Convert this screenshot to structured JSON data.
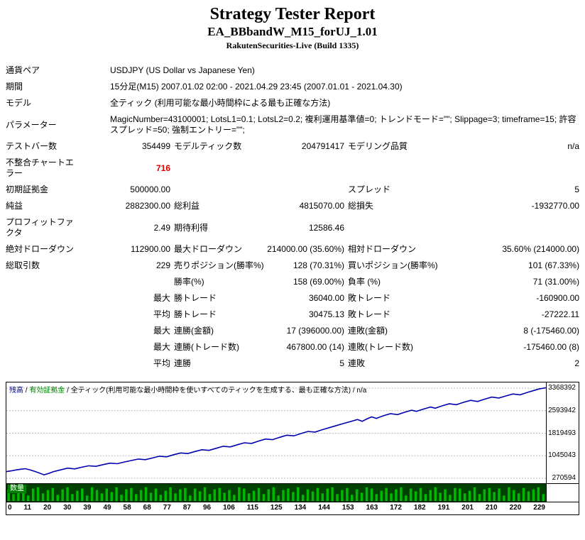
{
  "page": {
    "title": "Strategy Tester Report",
    "subtitle": "EA_BBbandW_M15_forUJ_1.01",
    "build": "RakutenSecurities-Live (Build 1335)"
  },
  "report": {
    "pair": {
      "label": "通貨ペア",
      "value": "USDJPY (US Dollar vs Japanese Yen)"
    },
    "period": {
      "label": "期間",
      "value": "15分足(M15) 2007.01.02 02:00 - 2021.04.29 23:45 (2007.01.01 - 2021.04.30)"
    },
    "model": {
      "label": "モデル",
      "value": "全ティック (利用可能な最小時間枠による最も正確な方法)"
    },
    "params": {
      "label": "パラメーター",
      "value": "MagicNumber=43100001; LotsL1=0.1; LotsL2=0.2; 複利運用基準値=0; トレンドモード=\"\"; Slippage=3; timeframe=15; 許容スプレッド=50; 強制エントリー=\"\";"
    },
    "bars": {
      "label": "テストバー数",
      "value": "354499",
      "label2": "モデルティック数",
      "value2": "204791417",
      "label3": "モデリング品質",
      "value3": "n/a"
    },
    "mismatch": {
      "label": "不整合チャートエラー",
      "value": "716"
    },
    "deposit": {
      "label": "初期証拠金",
      "value": "500000.00",
      "label3": "スプレッド",
      "value3": "5"
    },
    "net": {
      "label": "純益",
      "value": "2882300.00",
      "label2": "総利益",
      "value2": "4815070.00",
      "label3": "総損失",
      "value3": "-1932770.00"
    },
    "pf": {
      "label": "プロフィットファクタ",
      "value": "2.49",
      "label2": "期待利得",
      "value2": "12586.46"
    },
    "dd": {
      "label": "絶対ドローダウン",
      "value": "112900.00",
      "label2": "最大ドローダウン",
      "value2": "214000.00 (35.60%)",
      "label3": "相対ドローダウン",
      "value3": "35.60% (214000.00)"
    },
    "trades": {
      "label": "総取引数",
      "value": "229",
      "label2": "売りポジション(勝率%)",
      "value2": "128 (70.31%)",
      "label3": "買いポジション(勝率%)",
      "value3": "101 (67.33%)"
    },
    "winrate": {
      "label2": "勝率(%)",
      "value2": "158 (69.00%)",
      "label3": "負率 (%)",
      "value3": "71 (31.00%)"
    },
    "largest": {
      "q": "最大",
      "label2": "勝トレード",
      "value2": "36040.00",
      "label3": "敗トレード",
      "value3": "-160900.00"
    },
    "average": {
      "q": "平均",
      "label2": "勝トレード",
      "value2": "30475.13",
      "label3": "敗トレード",
      "value3": "-27222.11"
    },
    "maxconsec_money": {
      "q": "最大",
      "label2": "連勝(金額)",
      "value2": "17 (396000.00)",
      "label3": "連敗(金額)",
      "value3": "8 (-175460.00)"
    },
    "maxconsec_count": {
      "q": "最大",
      "label2": "連勝(トレード数)",
      "value2": "467800.00 (14)",
      "label3": "連敗(トレード数)",
      "value3": "-175460.00 (8)"
    },
    "avgconsec": {
      "q": "平均",
      "label2": "連勝",
      "value2": "5",
      "label3": "連敗",
      "value3": "2"
    }
  },
  "chart_data": {
    "type": "line",
    "caption": {
      "balance": "残高",
      "equity": "有効証拠金",
      "model": "全ティック(利用可能な最小時間枠を使いすべてのティックを生成する、最も正確な方法)",
      "quality": "n/a",
      "sep": " / "
    },
    "x_ticks": [
      "0",
      "11",
      "20",
      "30",
      "39",
      "49",
      "58",
      "68",
      "77",
      "87",
      "96",
      "106",
      "115",
      "125",
      "134",
      "144",
      "153",
      "163",
      "172",
      "182",
      "191",
      "201",
      "210",
      "220",
      "229"
    ],
    "y_ticks": [
      "3368392",
      "2593942",
      "1819493",
      "1045043",
      "270594"
    ],
    "xlim": [
      0,
      229
    ],
    "ylim": [
      270594,
      3368392
    ],
    "grid": true,
    "colors": {
      "grid": "#b8b8b8"
    },
    "series": [
      {
        "name": "残高",
        "color": "#0000b0",
        "points": [
          [
            0,
            500000
          ],
          [
            2,
            525000
          ],
          [
            4,
            556000
          ],
          [
            6,
            580000
          ],
          [
            8,
            601100
          ],
          [
            10,
            560000
          ],
          [
            12,
            508000
          ],
          [
            14,
            452000
          ],
          [
            16,
            387100
          ],
          [
            18,
            440000
          ],
          [
            20,
            500000
          ],
          [
            23,
            558000
          ],
          [
            26,
            620000
          ],
          [
            29,
            592000
          ],
          [
            32,
            650000
          ],
          [
            35,
            701000
          ],
          [
            38,
            680000
          ],
          [
            41,
            740000
          ],
          [
            44,
            791000
          ],
          [
            47,
            770000
          ],
          [
            50,
            830000
          ],
          [
            53,
            880000
          ],
          [
            56,
            931000
          ],
          [
            59,
            910000
          ],
          [
            62,
            969000
          ],
          [
            65,
            1030000
          ],
          [
            68,
            1008000
          ],
          [
            71,
            1080000
          ],
          [
            74,
            1141000
          ],
          [
            77,
            1120000
          ],
          [
            80,
            1190000
          ],
          [
            83,
            1251000
          ],
          [
            86,
            1228000
          ],
          [
            89,
            1301000
          ],
          [
            92,
            1370000
          ],
          [
            95,
            1349000
          ],
          [
            98,
            1422000
          ],
          [
            101,
            1490000
          ],
          [
            104,
            1468000
          ],
          [
            107,
            1548000
          ],
          [
            110,
            1620000
          ],
          [
            113,
            1598000
          ],
          [
            116,
            1678000
          ],
          [
            119,
            1750000
          ],
          [
            122,
            1729000
          ],
          [
            125,
            1808000
          ],
          [
            128,
            1880000
          ],
          [
            131,
            1858000
          ],
          [
            134,
            1939000
          ],
          [
            137,
            2010000
          ],
          [
            140,
            2080000
          ],
          [
            143,
            2151000
          ],
          [
            146,
            2220000
          ],
          [
            149,
            2291000
          ],
          [
            151,
            2230000
          ],
          [
            153,
            2310000
          ],
          [
            155,
            2381000
          ],
          [
            157,
            2330000
          ],
          [
            160,
            2420000
          ],
          [
            163,
            2490000
          ],
          [
            166,
            2459000
          ],
          [
            169,
            2540000
          ],
          [
            172,
            2611000
          ],
          [
            174,
            2570000
          ],
          [
            177,
            2650000
          ],
          [
            180,
            2720000
          ],
          [
            182,
            2679000
          ],
          [
            185,
            2760000
          ],
          [
            188,
            2831000
          ],
          [
            191,
            2800000
          ],
          [
            194,
            2880000
          ],
          [
            197,
            2949000
          ],
          [
            200,
            2910000
          ],
          [
            203,
            2990000
          ],
          [
            206,
            3061000
          ],
          [
            209,
            3030000
          ],
          [
            212,
            3100000
          ],
          [
            215,
            3169000
          ],
          [
            218,
            3140000
          ],
          [
            221,
            3220000
          ],
          [
            224,
            3290000
          ],
          [
            226,
            3338000
          ],
          [
            229,
            3382300
          ]
        ]
      }
    ],
    "volume": {
      "label": "数量",
      "bg": "#004000",
      "bar_color": "#00b800",
      "bars": [
        0.85,
        0.5,
        0.95,
        0.7,
        0.4,
        0.9,
        1,
        0.55,
        0.8,
        0.95,
        0.45,
        0.85,
        1,
        0.5,
        0.75,
        0.9,
        0.4,
        1,
        0.8,
        0.55,
        0.9,
        0.65,
        1,
        0.45,
        0.85,
        0.95,
        0.5,
        0.8,
        1,
        0.6,
        0.9,
        0.45,
        0.75,
        1,
        0.55,
        0.85,
        0.95,
        0.4,
        0.9,
        0.7,
        1,
        0.5,
        0.85,
        0.95,
        0.6,
        0.8,
        0.45,
        1,
        0.9,
        0.55,
        0.75,
        0.95,
        0.5,
        0.85,
        1,
        0.4,
        0.8,
        0.9,
        0.65,
        1,
        0.45,
        0.85,
        0.7,
        0.95,
        0.55,
        0.9,
        1,
        0.5,
        0.8,
        0.95,
        0.45,
        0.85,
        0.6,
        1,
        0.9,
        0.5,
        0.75,
        0.95,
        0.55,
        0.85,
        1,
        0.4,
        0.9,
        0.7,
        0.95,
        0.5,
        0.8,
        1,
        0.6,
        0.85,
        0.45,
        0.95,
        0.9,
        0.55,
        0.75,
        1,
        0.5,
        0.85,
        0.95,
        0.65,
        0.9,
        0.4,
        1,
        0.8,
        0.55,
        0.95,
        0.7,
        0.85,
        1,
        0.5
      ]
    }
  }
}
